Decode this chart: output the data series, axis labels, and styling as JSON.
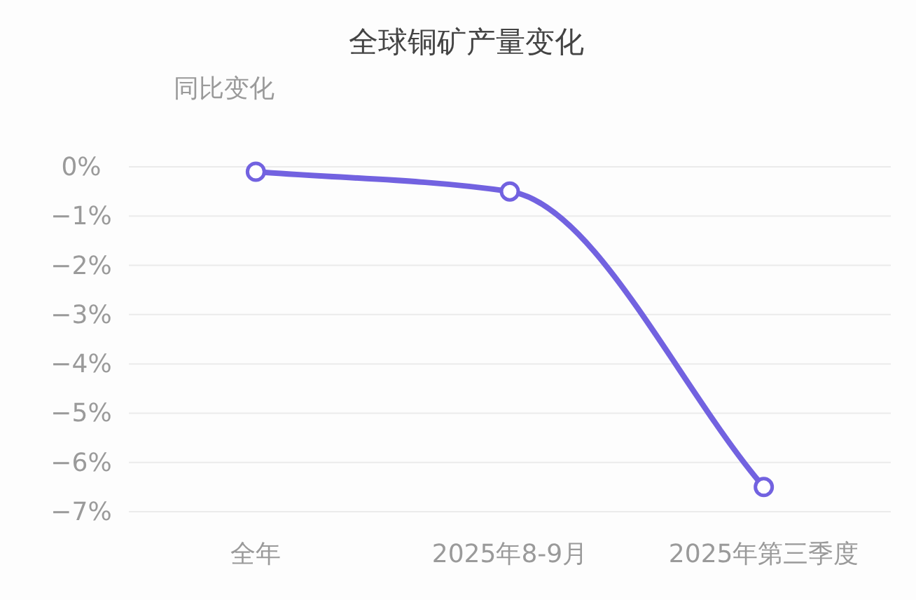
{
  "chart_data": {
    "type": "line",
    "title": "全球铜矿产量变化",
    "ylabel": "同比变化",
    "categories": [
      "全年",
      "2025年8-9月",
      "2025年第三季度"
    ],
    "series": [
      {
        "color": "#7262e0",
        "values": [
          -0.1,
          -0.5,
          -6.5
        ]
      }
    ],
    "ylim": [
      -7,
      0
    ],
    "yticks": [
      {
        "value": 0,
        "label": "0%"
      },
      {
        "value": -1,
        "label": "−1%"
      },
      {
        "value": -2,
        "label": "−2%"
      },
      {
        "value": -3,
        "label": "−3%"
      },
      {
        "value": -4,
        "label": "−4%"
      },
      {
        "value": -5,
        "label": "−5%"
      },
      {
        "value": -6,
        "label": "−6%"
      },
      {
        "value": -7,
        "label": "−7%"
      }
    ],
    "grid": "y",
    "marker": "circle",
    "line_style": "solid"
  }
}
